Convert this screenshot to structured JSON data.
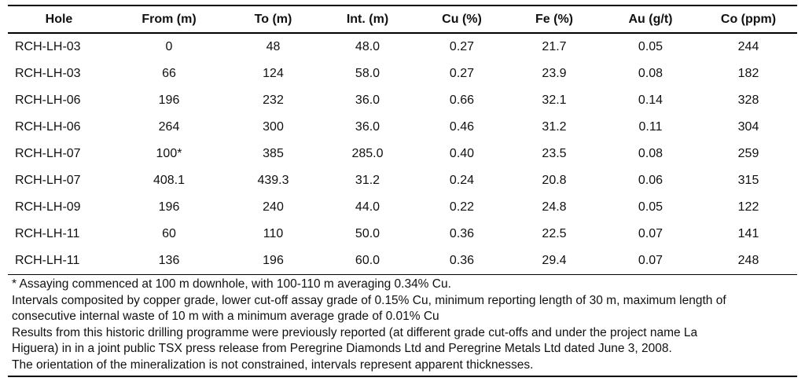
{
  "table": {
    "headers": [
      "Hole",
      "From (m)",
      "To (m)",
      "Int. (m)",
      "Cu (%)",
      "Fe (%)",
      "Au (g/t)",
      "Co (ppm)"
    ],
    "rows": [
      [
        "RCH-LH-03",
        "0",
        "48",
        "48.0",
        "0.27",
        "21.7",
        "0.05",
        "244"
      ],
      [
        "RCH-LH-03",
        "66",
        "124",
        "58.0",
        "0.27",
        "23.9",
        "0.08",
        "182"
      ],
      [
        "RCH-LH-06",
        "196",
        "232",
        "36.0",
        "0.66",
        "32.1",
        "0.14",
        "328"
      ],
      [
        "RCH-LH-06",
        "264",
        "300",
        "36.0",
        "0.46",
        "31.2",
        "0.11",
        "304"
      ],
      [
        "RCH-LH-07",
        "100*",
        "385",
        "285.0",
        "0.40",
        "23.5",
        "0.08",
        "259"
      ],
      [
        "RCH-LH-07",
        "408.1",
        "439.3",
        "31.2",
        "0.24",
        "20.8",
        "0.06",
        "315"
      ],
      [
        "RCH-LH-09",
        "196",
        "240",
        "44.0",
        "0.22",
        "24.8",
        "0.05",
        "122"
      ],
      [
        "RCH-LH-11",
        "60",
        "110",
        "50.0",
        "0.36",
        "22.5",
        "0.07",
        "141"
      ],
      [
        "RCH-LH-11",
        "136",
        "196",
        "60.0",
        "0.36",
        "29.4",
        "0.07",
        "248"
      ]
    ]
  },
  "notes": [
    "* Assaying commenced at 100 m downhole, with 100-110 m averaging 0.34% Cu.",
    "Intervals composited by copper grade, lower cut-off assay grade of 0.15% Cu, minimum reporting length of 30 m, maximum length of",
    "consecutive internal waste of 10 m with a minimum average grade of 0.01% Cu",
    "Results from this historic drilling programme were previously reported (at different grade cut-offs and under the project name La",
    "Higuera) in in a joint public TSX press release from Peregrine Diamonds Ltd and Peregrine Metals Ltd dated June 3, 2008.",
    "The orientation of the mineralization is not constrained, intervals represent apparent thicknesses."
  ]
}
